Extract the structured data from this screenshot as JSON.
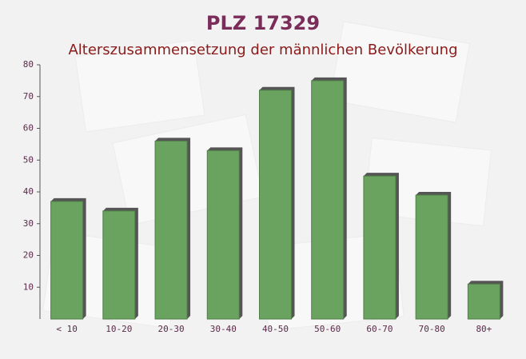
{
  "chart_data": {
    "type": "bar",
    "title": "PLZ 17329",
    "subtitle": "Alterszusammensetzung der männlichen Bevölkerung",
    "categories": [
      "< 10",
      "10-20",
      "20-30",
      "30-40",
      "40-50",
      "50-60",
      "60-70",
      "70-80",
      "80+"
    ],
    "values": [
      37,
      34,
      56,
      53,
      72,
      75,
      45,
      39,
      11
    ],
    "color": "#6aa35f",
    "ylim": [
      0,
      80
    ],
    "yticks": [
      10,
      20,
      30,
      40,
      50,
      60,
      70,
      80
    ],
    "grid": false
  }
}
